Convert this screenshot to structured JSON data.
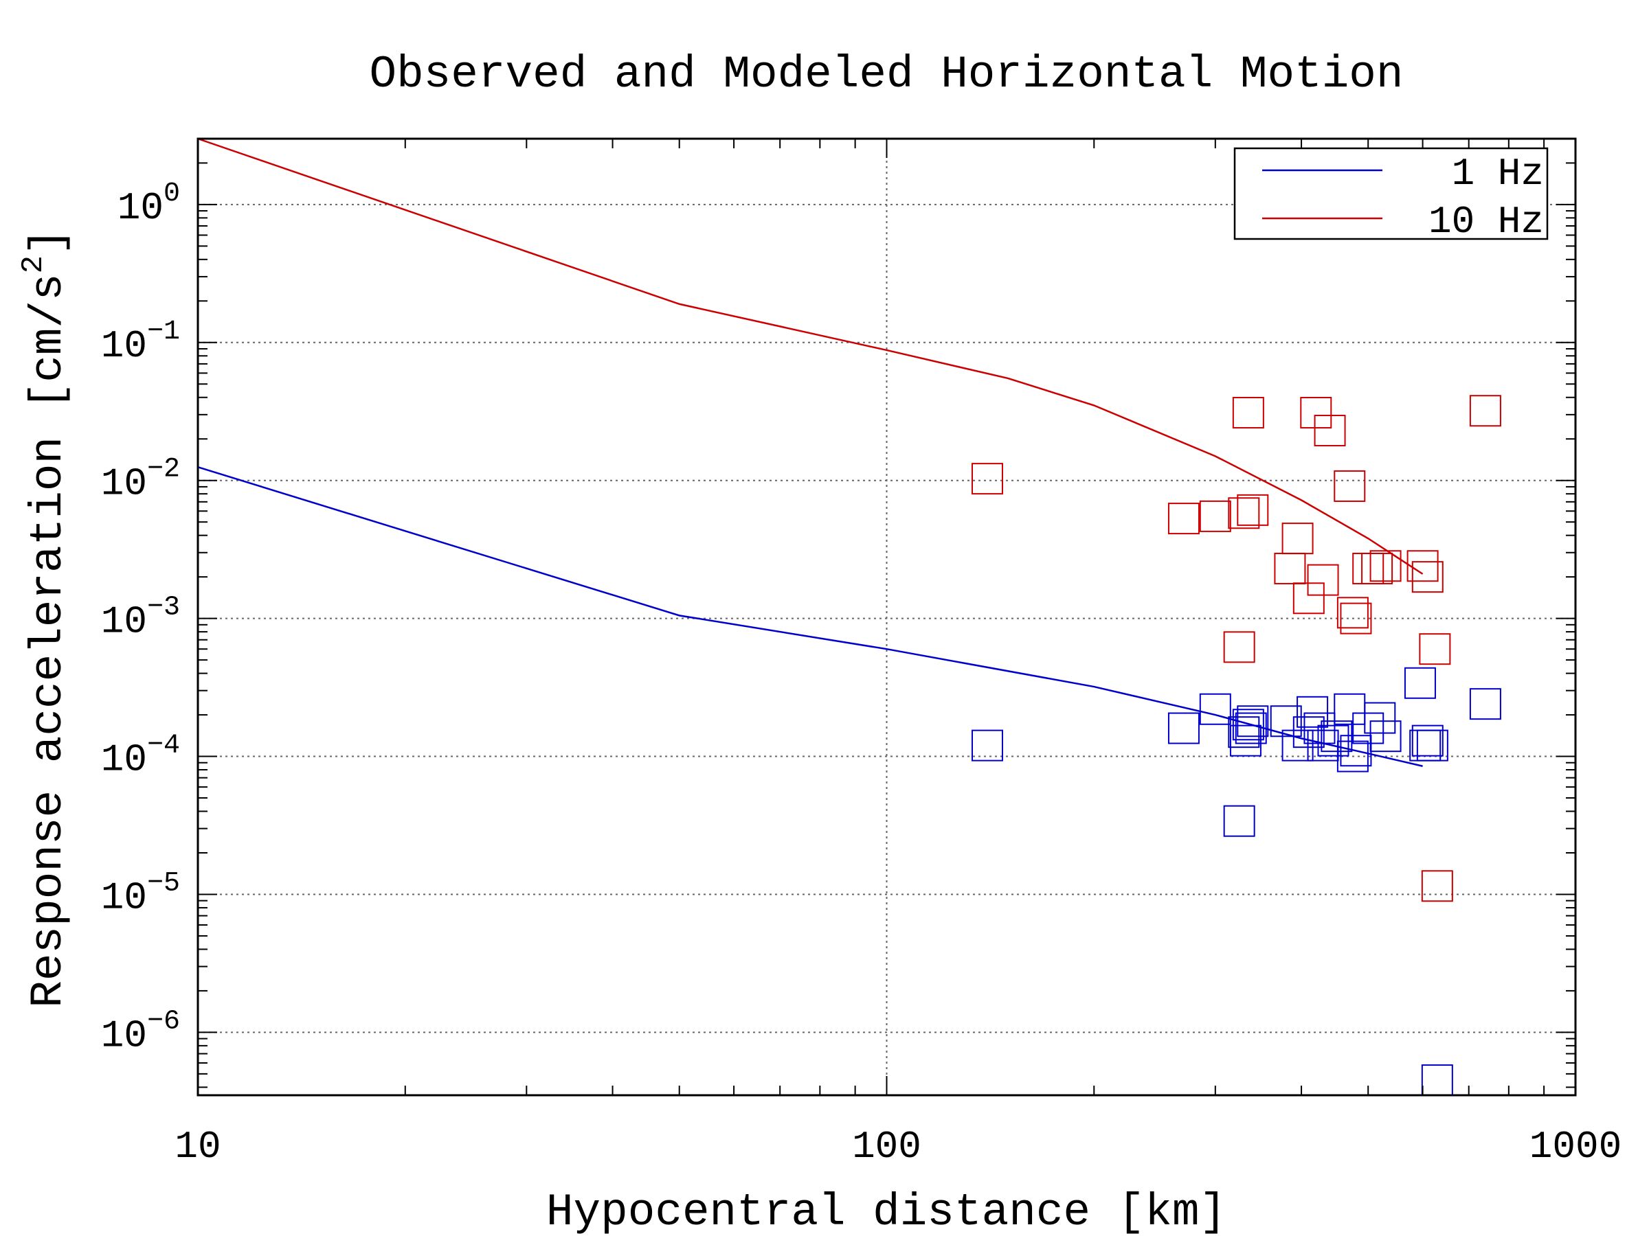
{
  "chart_data": {
    "type": "scatter",
    "title": "Observed and Modeled Horizontal Motion",
    "xlabel": "Hypocentral distance [km]",
    "ylabel": "Response acceleration [cm/s",
    "ylabel_sup": "2",
    "ylabel_end": "]",
    "x_scale": "log",
    "y_scale": "log",
    "xlim": [
      10,
      1000
    ],
    "ylim": [
      3.5e-07,
      3.0
    ],
    "grid": true,
    "legend_position": "top-right",
    "x_ticks": [
      {
        "value": 10,
        "label": "10"
      },
      {
        "value": 100,
        "label": "100"
      },
      {
        "value": 1000,
        "label": "1000"
      }
    ],
    "y_ticks": [
      {
        "value": 1,
        "base": "10",
        "exp": "0"
      },
      {
        "value": 0.1,
        "base": "10",
        "exp": "−1"
      },
      {
        "value": 0.01,
        "base": "10",
        "exp": "−2"
      },
      {
        "value": 0.001,
        "base": "10",
        "exp": "−3"
      },
      {
        "value": 0.0001,
        "base": "10",
        "exp": "−4"
      },
      {
        "value": 1e-05,
        "base": "10",
        "exp": "−5"
      },
      {
        "value": 1e-06,
        "base": "10",
        "exp": "−6"
      }
    ],
    "series": [
      {
        "name": "1 Hz",
        "color": "#0000cc",
        "model": {
          "x": [
            10,
            50,
            100,
            200,
            300,
            400,
            500,
            600
          ],
          "y": [
            0.0125,
            0.00105,
            0.0006,
            0.00032,
            0.0002,
            0.000135,
            0.000105,
            8.5e-05
          ]
        },
        "observed": {
          "x": [
            140,
            270,
            300,
            325,
            330,
            332,
            335,
            338,
            340,
            380,
            395,
            410,
            415,
            425,
            430,
            445,
            450,
            470,
            475,
            480,
            500,
            520,
            530,
            595,
            605,
            610,
            620,
            630
          ],
          "y": [
            0.00012,
            0.00016,
            0.00022,
            3.4e-05,
            0.00015,
            0.00013,
            0.00017,
            0.00016,
            0.00018,
            0.00018,
            0.00012,
            0.00015,
            0.00021,
            0.00016,
            0.00012,
            0.00013,
            0.00014,
            0.00022,
            0.0001,
            0.00011,
            0.00016,
            0.00019,
            0.00014,
            0.00034,
            0.00012,
            0.00013,
            0.00012,
            4.5e-07
          ],
          "extra": {
            "x": [
              740
            ],
            "y": [
              0.00024
            ]
          }
        }
      },
      {
        "name": "10 Hz",
        "color": "#cc0000",
        "model": {
          "x": [
            10,
            50,
            100,
            150,
            200,
            300,
            400,
            500,
            600
          ],
          "y": [
            3.0,
            0.19,
            0.088,
            0.055,
            0.035,
            0.015,
            0.0072,
            0.0038,
            0.0021
          ]
        },
        "observed": {
          "x": [
            140,
            270,
            300,
            325,
            330,
            335,
            340,
            385,
            395,
            410,
            420,
            430,
            440,
            470,
            475,
            480,
            500,
            515,
            530,
            600,
            610,
            625,
            630,
            740
          ],
          "y": [
            0.0103,
            0.0053,
            0.0055,
            0.00062,
            0.0058,
            0.031,
            0.0061,
            0.0023,
            0.0038,
            0.0014,
            0.031,
            0.0019,
            0.023,
            0.0091,
            0.0011,
            0.001,
            0.0023,
            0.0023,
            0.0024,
            0.0024,
            0.002,
            0.0006,
            1.15e-05,
            0.032
          ]
        }
      }
    ]
  }
}
